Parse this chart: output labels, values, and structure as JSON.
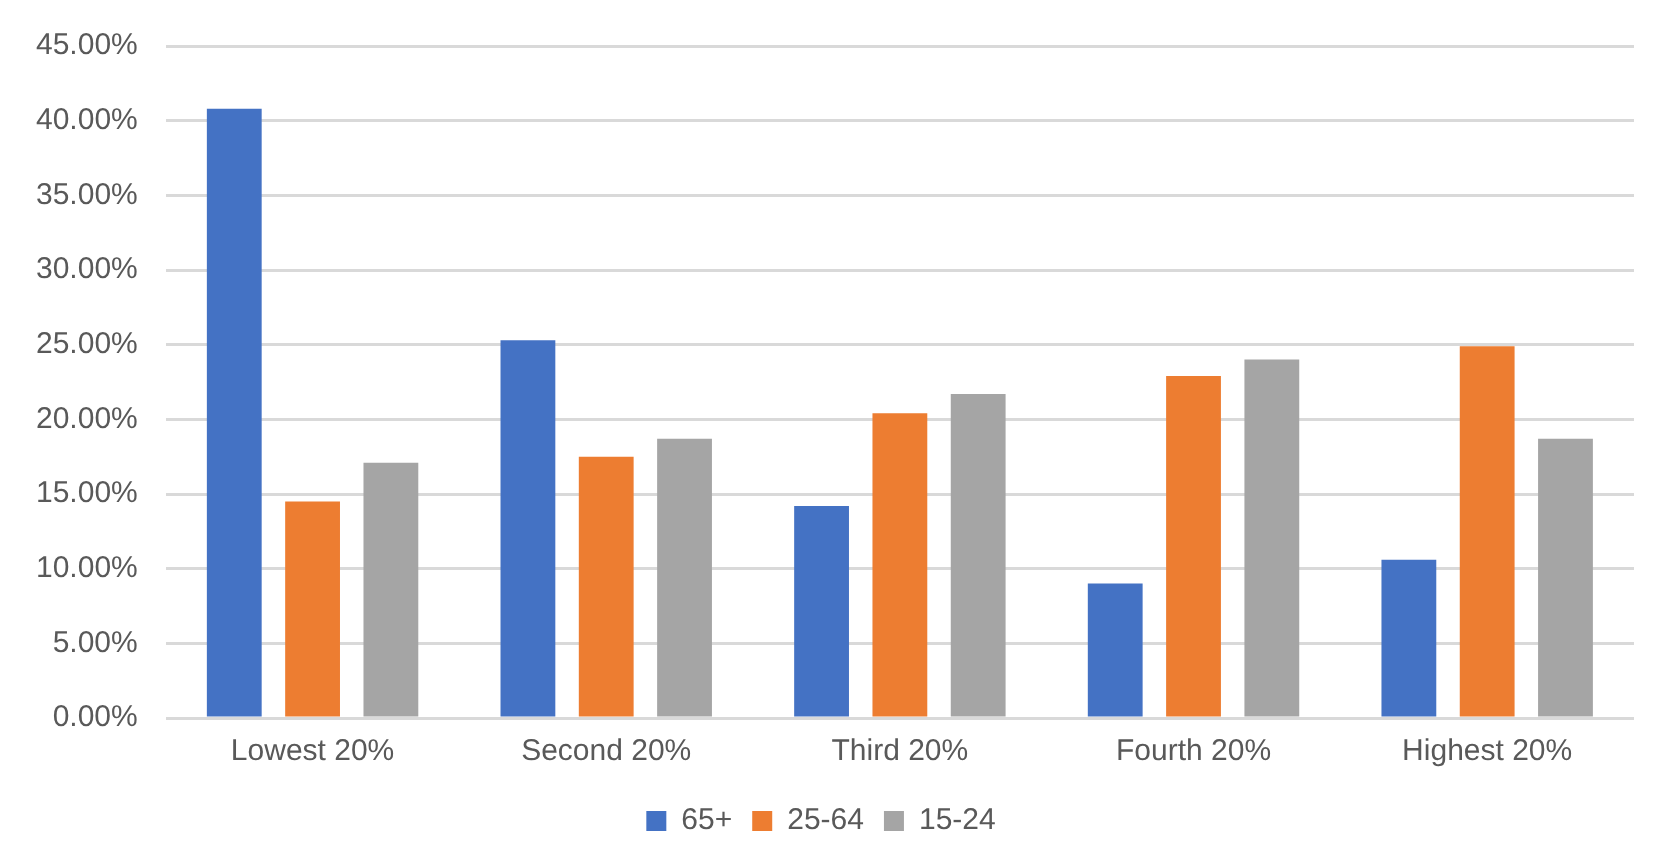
{
  "chart_data": {
    "type": "bar",
    "categories": [
      "Lowest 20%",
      "Second 20%",
      "Third 20%",
      "Fourth 20%",
      "Highest 20%"
    ],
    "series": [
      {
        "name": "65+",
        "color": "#4472c4",
        "values": [
          40.8,
          25.3,
          14.2,
          9.0,
          10.6
        ]
      },
      {
        "name": "25-64",
        "color": "#ed7d31",
        "values": [
          14.5,
          17.5,
          20.4,
          22.9,
          24.9
        ]
      },
      {
        "name": "15-24",
        "color": "#a5a5a5",
        "values": [
          17.1,
          18.7,
          21.7,
          24.0,
          18.7
        ]
      }
    ],
    "ylim": [
      0,
      45
    ],
    "yticks": [
      {
        "value": 0,
        "label": "0.00%"
      },
      {
        "value": 5,
        "label": "5.00%"
      },
      {
        "value": 10,
        "label": "10.00%"
      },
      {
        "value": 15,
        "label": "15.00%"
      },
      {
        "value": 20,
        "label": "20.00%"
      },
      {
        "value": 25,
        "label": "25.00%"
      },
      {
        "value": 30,
        "label": "30.00%"
      },
      {
        "value": 35,
        "label": "35.00%"
      },
      {
        "value": 40,
        "label": "40.00%"
      },
      {
        "value": 45,
        "label": "45.00%"
      }
    ],
    "grid": "y",
    "legend": "bottom"
  }
}
